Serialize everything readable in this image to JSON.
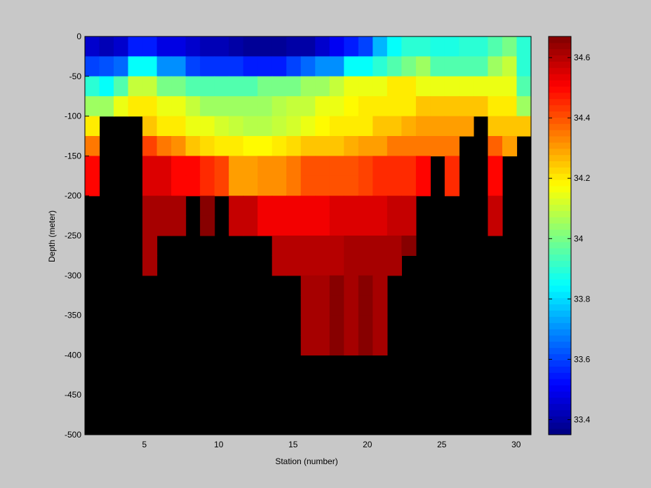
{
  "chart_data": {
    "type": "heatmap",
    "title": "",
    "xlabel": "Station (number)",
    "ylabel": "Depth (meter)",
    "xlim": [
      1,
      31
    ],
    "ylim": [
      -500,
      0
    ],
    "x_ticks": [
      5,
      10,
      15,
      20,
      25,
      30
    ],
    "y_ticks": [
      0,
      -50,
      -100,
      -150,
      -200,
      -250,
      -300,
      -350,
      -400,
      -450,
      -500
    ],
    "colorbar": {
      "colormap": "jet",
      "range": [
        33.35,
        34.67
      ],
      "ticks": [
        33.4,
        33.6,
        33.8,
        34,
        34.2,
        34.4,
        34.6
      ]
    },
    "missing_color": "#000000",
    "stations": [
      1,
      2,
      3,
      4,
      5,
      6,
      7,
      8,
      9,
      10,
      11,
      12,
      13,
      14,
      15,
      16,
      17,
      18,
      19,
      20,
      21,
      22,
      23,
      24,
      25,
      26,
      27,
      28,
      29,
      30,
      31
    ],
    "depth_bins": [
      [
        0,
        -25
      ],
      [
        -25,
        -50
      ],
      [
        -50,
        -75
      ],
      [
        -75,
        -100
      ],
      [
        -100,
        -125
      ],
      [
        -125,
        -150
      ],
      [
        -150,
        -175
      ],
      [
        -175,
        -200
      ],
      [
        -200,
        -225
      ],
      [
        -225,
        -250
      ],
      [
        -250,
        -275
      ],
      [
        -275,
        -300
      ],
      [
        -300,
        -325
      ],
      [
        -325,
        -350
      ],
      [
        -350,
        -375
      ],
      [
        -375,
        -400
      ]
    ],
    "values": [
      [
        33.45,
        33.42,
        33.45,
        33.55,
        33.55,
        33.48,
        33.48,
        33.45,
        33.42,
        33.42,
        33.4,
        33.38,
        33.38,
        33.38,
        33.4,
        33.4,
        33.45,
        33.5,
        33.55,
        33.6,
        33.75,
        33.85,
        33.9,
        33.9,
        33.88,
        33.88,
        33.9,
        33.9,
        33.95,
        34.0,
        33.9
      ],
      [
        33.6,
        33.62,
        33.65,
        33.85,
        33.85,
        33.7,
        33.7,
        33.6,
        33.58,
        33.58,
        33.58,
        33.55,
        33.55,
        33.55,
        33.6,
        33.65,
        33.7,
        33.7,
        33.85,
        33.85,
        33.9,
        33.95,
        34.0,
        34.05,
        33.95,
        33.95,
        33.95,
        33.95,
        34.05,
        34.1,
        33.9
      ],
      [
        33.9,
        33.85,
        33.95,
        34.1,
        34.1,
        34.0,
        34.0,
        33.95,
        33.95,
        33.95,
        33.95,
        33.95,
        34.0,
        34.0,
        34.0,
        34.05,
        34.05,
        34.1,
        34.15,
        34.15,
        34.15,
        34.2,
        34.2,
        34.15,
        34.15,
        34.15,
        34.15,
        34.15,
        34.15,
        34.15,
        33.95
      ],
      [
        34.05,
        34.05,
        34.15,
        34.2,
        34.2,
        34.15,
        34.15,
        34.1,
        34.05,
        34.05,
        34.05,
        34.05,
        34.05,
        34.08,
        34.1,
        34.1,
        34.15,
        34.15,
        34.18,
        34.2,
        34.2,
        34.2,
        34.2,
        34.25,
        34.25,
        34.25,
        34.25,
        34.25,
        34.2,
        34.2,
        34.05
      ],
      [
        34.2,
        null,
        null,
        null,
        34.25,
        34.2,
        34.2,
        34.15,
        34.15,
        34.12,
        34.1,
        34.08,
        34.08,
        34.1,
        34.12,
        34.15,
        34.18,
        34.2,
        34.2,
        34.2,
        34.25,
        34.25,
        34.28,
        34.3,
        34.3,
        34.3,
        34.3,
        null,
        34.25,
        34.25,
        34.25
      ],
      [
        34.35,
        null,
        null,
        null,
        34.42,
        34.35,
        34.32,
        34.25,
        34.22,
        34.2,
        34.2,
        34.18,
        34.18,
        34.2,
        34.22,
        34.25,
        34.25,
        34.25,
        34.28,
        34.3,
        34.3,
        34.35,
        34.35,
        34.35,
        34.35,
        34.35,
        null,
        null,
        34.38,
        34.3,
        null
      ],
      [
        34.5,
        null,
        null,
        null,
        34.55,
        34.55,
        34.5,
        34.5,
        34.45,
        34.42,
        34.3,
        34.3,
        34.32,
        34.32,
        34.35,
        34.4,
        34.4,
        34.4,
        34.4,
        34.42,
        34.45,
        34.45,
        34.45,
        34.5,
        null,
        34.45,
        null,
        null,
        34.5,
        null,
        null
      ],
      [
        34.5,
        null,
        null,
        null,
        34.55,
        34.55,
        34.5,
        34.5,
        34.45,
        34.42,
        34.3,
        34.3,
        34.32,
        34.32,
        34.35,
        34.4,
        34.4,
        34.4,
        34.4,
        34.42,
        34.45,
        34.45,
        34.45,
        34.5,
        null,
        34.45,
        null,
        null,
        34.5,
        null,
        null
      ],
      [
        null,
        null,
        null,
        null,
        34.62,
        34.62,
        34.62,
        null,
        34.66,
        null,
        34.58,
        34.58,
        34.52,
        34.52,
        34.52,
        34.52,
        34.52,
        34.55,
        34.55,
        34.55,
        34.55,
        34.58,
        34.58,
        null,
        null,
        null,
        null,
        null,
        34.58,
        null,
        null
      ],
      [
        null,
        null,
        null,
        null,
        34.62,
        34.62,
        34.62,
        null,
        34.66,
        null,
        34.58,
        34.58,
        34.52,
        34.52,
        34.52,
        34.52,
        34.52,
        34.55,
        34.55,
        34.55,
        34.55,
        34.58,
        34.58,
        null,
        null,
        null,
        null,
        null,
        34.58,
        null,
        null
      ],
      [
        null,
        null,
        null,
        null,
        34.62,
        null,
        null,
        null,
        null,
        null,
        null,
        null,
        null,
        34.6,
        34.6,
        34.6,
        34.6,
        34.6,
        34.62,
        34.62,
        34.62,
        34.62,
        34.66,
        null,
        null,
        null,
        null,
        null,
        null,
        null,
        null
      ],
      [
        null,
        null,
        null,
        null,
        34.62,
        null,
        null,
        null,
        null,
        null,
        null,
        null,
        null,
        34.6,
        34.6,
        34.6,
        34.6,
        34.6,
        34.62,
        34.62,
        34.62,
        34.62,
        null,
        null,
        null,
        null,
        null,
        null,
        null,
        null,
        null
      ],
      [
        null,
        null,
        null,
        null,
        null,
        null,
        null,
        null,
        null,
        null,
        null,
        null,
        null,
        null,
        null,
        34.62,
        34.62,
        34.66,
        34.62,
        34.66,
        34.62,
        null,
        null,
        null,
        null,
        null,
        null,
        null,
        null,
        null,
        null
      ],
      [
        null,
        null,
        null,
        null,
        null,
        null,
        null,
        null,
        null,
        null,
        null,
        null,
        null,
        null,
        null,
        34.62,
        34.62,
        34.66,
        34.62,
        34.66,
        34.62,
        null,
        null,
        null,
        null,
        null,
        null,
        null,
        null,
        null,
        null
      ],
      [
        null,
        null,
        null,
        null,
        null,
        null,
        null,
        null,
        null,
        null,
        null,
        null,
        null,
        null,
        null,
        34.62,
        34.62,
        34.66,
        34.62,
        34.66,
        34.62,
        null,
        null,
        null,
        null,
        null,
        null,
        null,
        null,
        null,
        null
      ],
      [
        null,
        null,
        null,
        null,
        null,
        null,
        null,
        null,
        null,
        null,
        null,
        null,
        null,
        null,
        null,
        34.62,
        34.62,
        34.66,
        34.62,
        34.66,
        34.62,
        null,
        null,
        null,
        null,
        null,
        null,
        null,
        null,
        null,
        null
      ]
    ]
  }
}
